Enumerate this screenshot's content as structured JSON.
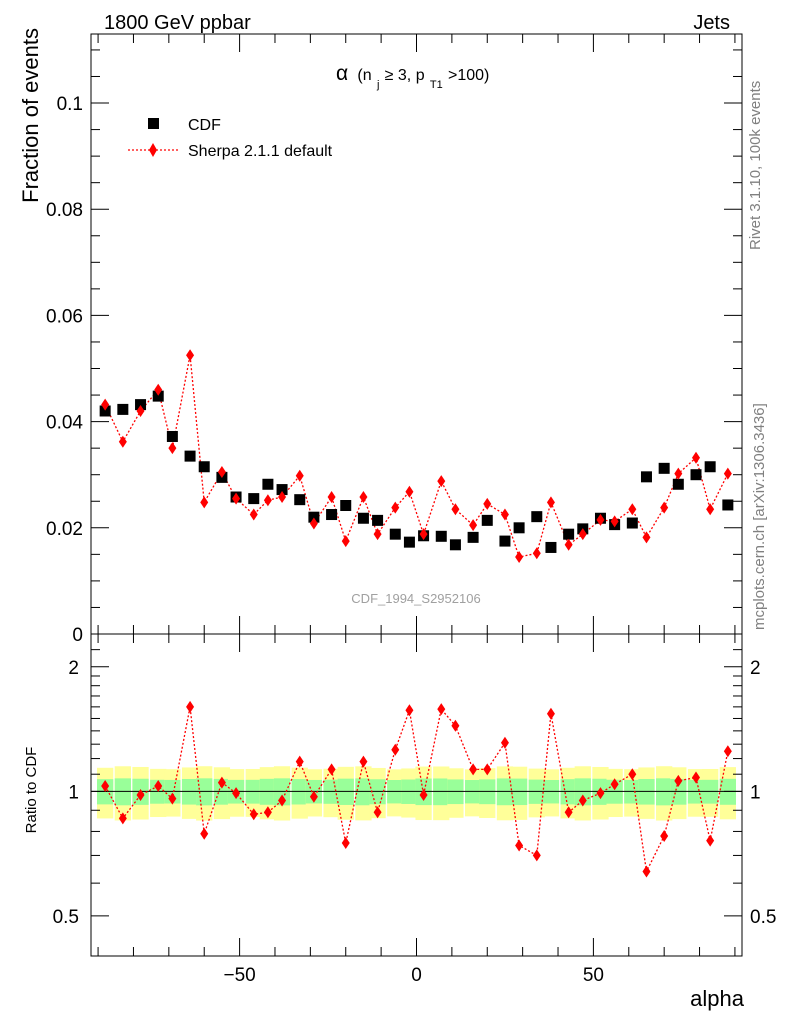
{
  "header": {
    "left": "1800 GeV ppbar",
    "right": "Jets"
  },
  "side_labels": {
    "rivet": "Rivet 3.1.10,  100k events",
    "mcplots": "mcplots.cern.ch [arXiv:1306.3436]"
  },
  "watermark": "CDF_1994_S2952106",
  "chart_data": {
    "type": "scatter",
    "title": "α (n_j ≥ 3, p_T1 > 100)",
    "title_parts": {
      "alpha": "α",
      "open": "(n",
      "j": "j",
      "geq": " ≥ 3, p",
      "t1": "T1",
      "gt": ">100)"
    },
    "xlabel": "alpha",
    "ylabel": "Fraction of events",
    "ratio_ylabel": "Ratio to CDF",
    "xlim": [
      -92,
      92
    ],
    "ylim": [
      0,
      0.113
    ],
    "ratio_ylim": [
      0.4,
      2.4
    ],
    "x_ticks": [
      -50,
      0,
      50
    ],
    "x_tick_labels": [
      "−50",
      "0",
      "50"
    ],
    "y_ticks": [
      0,
      0.02,
      0.04,
      0.06,
      0.08,
      0.1
    ],
    "y_tick_labels": [
      "0",
      "0.02",
      "0.04",
      "0.06",
      "0.08",
      "0.1"
    ],
    "ratio_ticks": [
      0.5,
      1,
      2
    ],
    "ratio_tick_labels": [
      "0.5",
      "1",
      "2"
    ],
    "legend": [
      {
        "name": "CDF",
        "marker": "square",
        "color": "#000000"
      },
      {
        "name": "Sherpa 2.1.1 default",
        "marker": "diamond",
        "color": "#ff0000"
      }
    ],
    "x": [
      -86.6,
      -81.6,
      -76.6,
      -71.6,
      -66.6,
      -61.6,
      -56.6,
      -51.6,
      -46.6,
      -41.6,
      -36.6,
      -31.6,
      -26.6,
      -21.6,
      -16.6,
      -11.6,
      -6.6,
      -1.6,
      3.4,
      8.4,
      13.4,
      18.4,
      23.4,
      28.4,
      33.4,
      38.4,
      43.4,
      48.4,
      53.4,
      58.4,
      63.4,
      68.4,
      73.4,
      78.4,
      83.4,
      88.4
    ],
    "series": [
      {
        "name": "CDF",
        "values": [
          0.042,
          0.0423,
          0.0432,
          0.0448,
          0.0372,
          0.0335,
          0.0315,
          0.0295,
          0.0258,
          0.0255,
          0.0282,
          0.0272,
          0.0253,
          0.022,
          0.0225,
          0.0242,
          0.0218,
          0.0214,
          0.0188,
          0.0173,
          0.0185,
          0.0184,
          0.0168,
          0.0182,
          0.0214,
          0.0175,
          0.02,
          0.0221,
          0.0163,
          0.0188,
          0.0198,
          0.0218,
          0.0206,
          0.0209,
          0.0296,
          0.0312,
          0.0282,
          0.03,
          0.0315,
          0.0243
        ],
        "x": [
          -88,
          -83,
          -78,
          -73,
          -69,
          -64,
          -60,
          -55,
          -51,
          -46,
          -42,
          -38,
          -33,
          -29,
          -24,
          -20,
          -15,
          -11,
          -6,
          -2,
          2,
          7,
          11,
          16,
          20,
          25,
          29,
          34,
          38,
          43,
          47,
          52,
          56,
          61,
          65,
          70,
          74,
          79,
          83,
          88
        ]
      },
      {
        "name": "Sherpa 2.1.1 default",
        "values": [
          0.0432,
          0.0362,
          0.042,
          0.046,
          0.035,
          0.0525,
          0.0248,
          0.0305,
          0.0255,
          0.0225,
          0.0252,
          0.0258,
          0.0298,
          0.0208,
          0.0258,
          0.0175,
          0.0258,
          0.0188,
          0.0238,
          0.0268,
          0.0188,
          0.0288,
          0.0235,
          0.0205,
          0.0245,
          0.0225,
          0.0145,
          0.0152,
          0.0248,
          0.0168,
          0.0188,
          0.0215,
          0.0212,
          0.0235,
          0.0182,
          0.0238,
          0.0302,
          0.0332,
          0.0235,
          0.0302
        ],
        "x": [
          -88,
          -83,
          -78,
          -73,
          -69,
          -64,
          -60,
          -55,
          -51,
          -46,
          -42,
          -38,
          -33,
          -29,
          -24,
          -20,
          -15,
          -11,
          -6,
          -2,
          2,
          7,
          11,
          16,
          20,
          25,
          29,
          34,
          38,
          43,
          47,
          52,
          56,
          61,
          65,
          70,
          74,
          79,
          83,
          88
        ]
      }
    ],
    "ratio": {
      "x": [
        -88,
        -83,
        -78,
        -73,
        -69,
        -64,
        -60,
        -55,
        -51,
        -46,
        -42,
        -38,
        -33,
        -29,
        -24,
        -20,
        -15,
        -11,
        -6,
        -2,
        2,
        7,
        11,
        16,
        20,
        25,
        29,
        34,
        38,
        43,
        47,
        52,
        56,
        61,
        65,
        70,
        74,
        79,
        83,
        88
      ],
      "values": [
        1.03,
        0.86,
        0.98,
        1.03,
        0.96,
        1.6,
        0.79,
        1.05,
        0.99,
        0.88,
        0.89,
        0.95,
        1.18,
        0.97,
        1.13,
        0.75,
        1.18,
        0.89,
        1.26,
        1.57,
        0.98,
        1.58,
        1.44,
        1.13,
        1.13,
        1.31,
        0.74,
        0.7,
        1.54,
        0.89,
        0.95,
        0.99,
        1.04,
        1.1,
        0.64,
        0.78,
        1.06,
        1.08,
        0.76,
        1.25
      ],
      "band_inner": 0.07,
      "band_outer": 0.14
    }
  }
}
